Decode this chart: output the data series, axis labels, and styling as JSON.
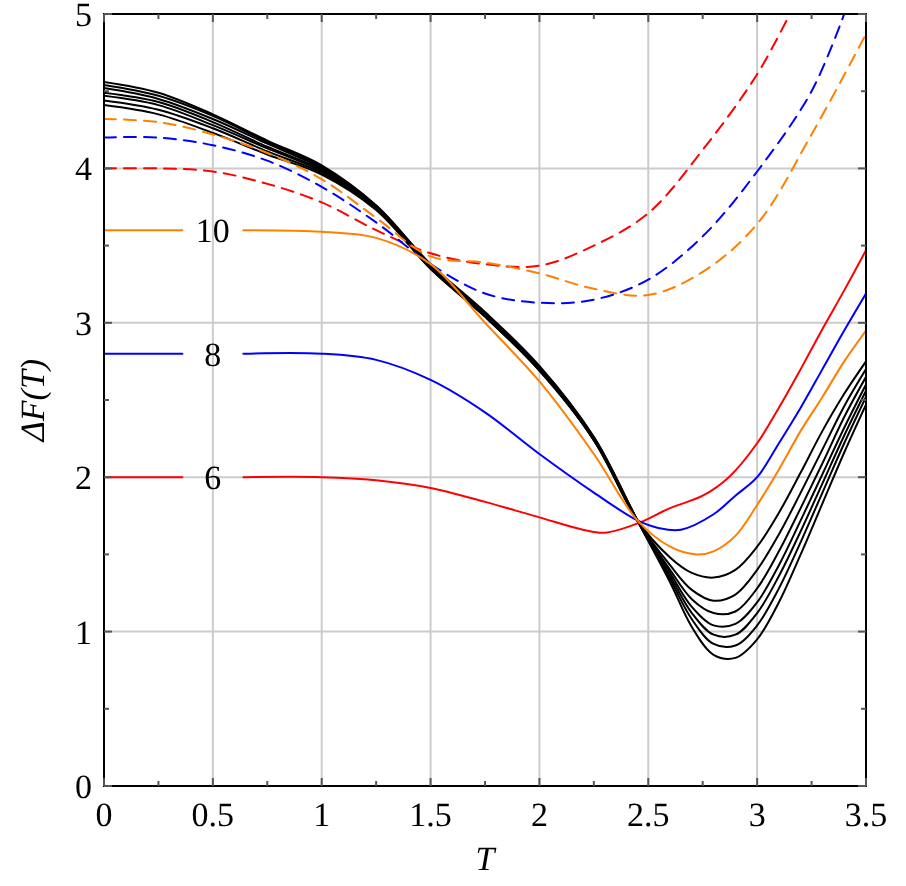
{
  "chart_data": {
    "type": "line",
    "xlabel": "T",
    "ylabel": "ΔF(T)",
    "xlim": [
      0,
      3.5
    ],
    "ylim": [
      0,
      5
    ],
    "xticks": [
      0,
      {
        "value": 0.25,
        "label": null
      },
      0.5,
      {
        "value": 0.75,
        "label": null
      },
      1,
      {
        "value": 1.25,
        "label": null
      },
      1.5,
      {
        "value": 1.75,
        "label": null
      },
      2,
      {
        "value": 2.25,
        "label": null
      },
      2.5,
      {
        "value": 2.75,
        "label": null
      },
      3,
      {
        "value": 3.25,
        "label": null
      },
      3.5
    ],
    "yticks": [
      0,
      {
        "value": 0.5,
        "label": null
      },
      1,
      {
        "value": 1.5,
        "label": null
      },
      2,
      {
        "value": 2.5,
        "label": null
      },
      3,
      {
        "value": 3.5,
        "label": null
      },
      4,
      {
        "value": 4.5,
        "label": null
      },
      5
    ],
    "grid": true,
    "marker": "none",
    "series": [
      {
        "color": "#000000",
        "line_style": "solid",
        "x": [
          0,
          0.25,
          0.5,
          0.75,
          1,
          1.25,
          1.5,
          1.75,
          2,
          2.25,
          2.45,
          2.6,
          2.7,
          2.8,
          2.9,
          3,
          3.1,
          3.2,
          3.3,
          3.4,
          3.5
        ],
        "values": [
          4.41,
          4.35,
          4.23,
          4.09,
          3.96,
          3.73,
          3.35,
          3.04,
          2.69,
          2.24,
          1.72,
          1.48,
          1.38,
          1.35,
          1.4,
          1.55,
          1.77,
          2.03,
          2.3,
          2.54,
          2.75
        ]
      },
      {
        "color": "#000000",
        "line_style": "solid",
        "x": [
          0,
          0.25,
          0.5,
          0.75,
          1,
          1.25,
          1.5,
          1.75,
          2,
          2.25,
          2.45,
          2.6,
          2.7,
          2.8,
          2.9,
          3,
          3.1,
          3.2,
          3.3,
          3.4,
          3.5
        ],
        "values": [
          4.44,
          4.38,
          4.26,
          4.11,
          3.97,
          3.74,
          3.35,
          3.04,
          2.69,
          2.24,
          1.72,
          1.43,
          1.27,
          1.2,
          1.24,
          1.4,
          1.63,
          1.9,
          2.18,
          2.46,
          2.7
        ]
      },
      {
        "color": "#000000",
        "line_style": "solid",
        "x": [
          0,
          0.25,
          0.5,
          0.75,
          1,
          1.25,
          1.5,
          1.75,
          2,
          2.25,
          2.45,
          2.6,
          2.7,
          2.8,
          2.9,
          3,
          3.1,
          3.2,
          3.3,
          3.4,
          3.5
        ],
        "values": [
          4.47,
          4.41,
          4.28,
          4.13,
          3.98,
          3.74,
          3.36,
          3.05,
          2.7,
          2.24,
          1.72,
          1.4,
          1.21,
          1.12,
          1.13,
          1.28,
          1.52,
          1.8,
          2.09,
          2.39,
          2.65
        ]
      },
      {
        "color": "#000000",
        "line_style": "solid",
        "x": [
          0,
          0.25,
          0.5,
          0.75,
          1,
          1.25,
          1.5,
          1.75,
          2,
          2.25,
          2.45,
          2.6,
          2.7,
          2.8,
          2.9,
          3,
          3.1,
          3.2,
          3.3,
          3.4,
          3.5
        ],
        "values": [
          4.49,
          4.43,
          4.3,
          4.14,
          3.99,
          3.75,
          3.36,
          3.05,
          2.7,
          2.25,
          1.72,
          1.38,
          1.16,
          1.04,
          1.05,
          1.19,
          1.43,
          1.72,
          2.02,
          2.32,
          2.6
        ]
      },
      {
        "color": "#000000",
        "line_style": "solid",
        "x": [
          0,
          0.25,
          0.5,
          0.75,
          1,
          1.25,
          1.5,
          1.75,
          2,
          2.25,
          2.45,
          2.6,
          2.7,
          2.8,
          2.9,
          3,
          3.1,
          3.2,
          3.3,
          3.4,
          3.5
        ],
        "values": [
          4.52,
          4.45,
          4.32,
          4.16,
          4,
          3.75,
          3.37,
          3.06,
          2.71,
          2.25,
          1.72,
          1.36,
          1.12,
          0.98,
          0.98,
          1.12,
          1.36,
          1.65,
          1.96,
          2.27,
          2.56
        ]
      },
      {
        "color": "#000000",
        "line_style": "solid",
        "x": [
          0,
          0.25,
          0.5,
          0.75,
          1,
          1.25,
          1.5,
          1.75,
          2,
          2.25,
          2.45,
          2.6,
          2.7,
          2.8,
          2.9,
          3,
          3.1,
          3.2,
          3.3,
          3.4,
          3.5
        ],
        "values": [
          4.54,
          4.47,
          4.34,
          4.17,
          4.01,
          3.76,
          3.37,
          3.06,
          2.71,
          2.26,
          1.72,
          1.34,
          1.08,
          0.92,
          0.91,
          1.04,
          1.28,
          1.58,
          1.9,
          2.22,
          2.52
        ]
      },
      {
        "color": "#000000",
        "line_style": "solid",
        "x": [
          0,
          0.25,
          0.5,
          0.75,
          1,
          1.25,
          1.5,
          1.75,
          2,
          2.25,
          2.45,
          2.6,
          2.7,
          2.8,
          2.9,
          3,
          3.1,
          3.2,
          3.3,
          3.4,
          3.5
        ],
        "values": [
          4.56,
          4.49,
          4.35,
          4.18,
          4.02,
          3.76,
          3.38,
          3.07,
          2.72,
          2.26,
          1.72,
          1.32,
          1.03,
          0.85,
          0.83,
          0.95,
          1.19,
          1.5,
          1.83,
          2.16,
          2.47
        ]
      },
      {
        "color": "#ff0000",
        "line_style": "dashed",
        "x": [
          0,
          0.25,
          0.5,
          0.75,
          1,
          1.25,
          1.5,
          1.75,
          2,
          2.25,
          2.5,
          2.75,
          3,
          3.15
        ],
        "values": [
          4,
          4,
          3.98,
          3.9,
          3.78,
          3.6,
          3.45,
          3.38,
          3.37,
          3.5,
          3.71,
          4.12,
          4.61,
          5
        ]
      },
      {
        "color": "#0000ff",
        "line_style": "dashed",
        "x": [
          0,
          0.25,
          0.5,
          0.75,
          1,
          1.25,
          1.5,
          1.75,
          2,
          2.25,
          2.5,
          2.75,
          3,
          3.25,
          3.4
        ],
        "values": [
          4.2,
          4.2,
          4.15,
          4.05,
          3.88,
          3.65,
          3.38,
          3.19,
          3.13,
          3.15,
          3.28,
          3.56,
          3.98,
          4.5,
          5
        ]
      },
      {
        "color": "#ff8000",
        "line_style": "dashed",
        "x": [
          0,
          0.25,
          0.5,
          0.75,
          1,
          1.25,
          1.5,
          1.75,
          2,
          2.25,
          2.5,
          2.75,
          3,
          3.25,
          3.5
        ],
        "values": [
          4.32,
          4.3,
          4.22,
          4.1,
          3.93,
          3.68,
          3.43,
          3.39,
          3.32,
          3.22,
          3.18,
          3.33,
          3.64,
          4.22,
          4.87
        ]
      },
      {
        "name": "6",
        "color": "#ff0000",
        "line_style": "solid",
        "x": [
          0,
          0.36,
          0.5,
          0.64,
          1,
          1.25,
          1.5,
          1.75,
          2,
          2.2,
          2.3,
          2.45,
          2.6,
          2.75,
          2.87,
          3,
          3.1,
          3.2,
          3.3,
          3.4,
          3.5
        ],
        "values": [
          2,
          2,
          null,
          2,
          2,
          1.98,
          1.93,
          1.84,
          1.74,
          1.66,
          1.64,
          1.7,
          1.8,
          1.88,
          2,
          2.22,
          2.45,
          2.7,
          2.96,
          3.21,
          3.47
        ]
      },
      {
        "name": "8",
        "color": "#0000ff",
        "line_style": "solid",
        "x": [
          0,
          0.36,
          0.5,
          0.64,
          1,
          1.25,
          1.5,
          1.75,
          2,
          2.25,
          2.45,
          2.55,
          2.65,
          2.8,
          2.9,
          3,
          3.1,
          3.2,
          3.3,
          3.4,
          3.5
        ],
        "values": [
          2.8,
          2.8,
          null,
          2.8,
          2.8,
          2.76,
          2.63,
          2.42,
          2.15,
          1.9,
          1.72,
          1.67,
          1.66,
          1.76,
          1.88,
          2,
          2.22,
          2.45,
          2.7,
          2.95,
          3.19
        ]
      },
      {
        "name": "10",
        "color": "#ff8000",
        "line_style": "solid",
        "x": [
          0,
          0.36,
          0.5,
          0.64,
          1,
          1.25,
          1.5,
          1.75,
          2,
          2.25,
          2.45,
          2.6,
          2.72,
          2.8,
          2.9,
          3,
          3.1,
          3.2,
          3.3,
          3.4,
          3.5
        ],
        "values": [
          3.6,
          3.6,
          null,
          3.6,
          3.59,
          3.55,
          3.38,
          3,
          2.62,
          2.15,
          1.72,
          1.55,
          1.5,
          1.52,
          1.62,
          1.82,
          2.05,
          2.3,
          2.52,
          2.75,
          2.95
        ]
      }
    ]
  }
}
